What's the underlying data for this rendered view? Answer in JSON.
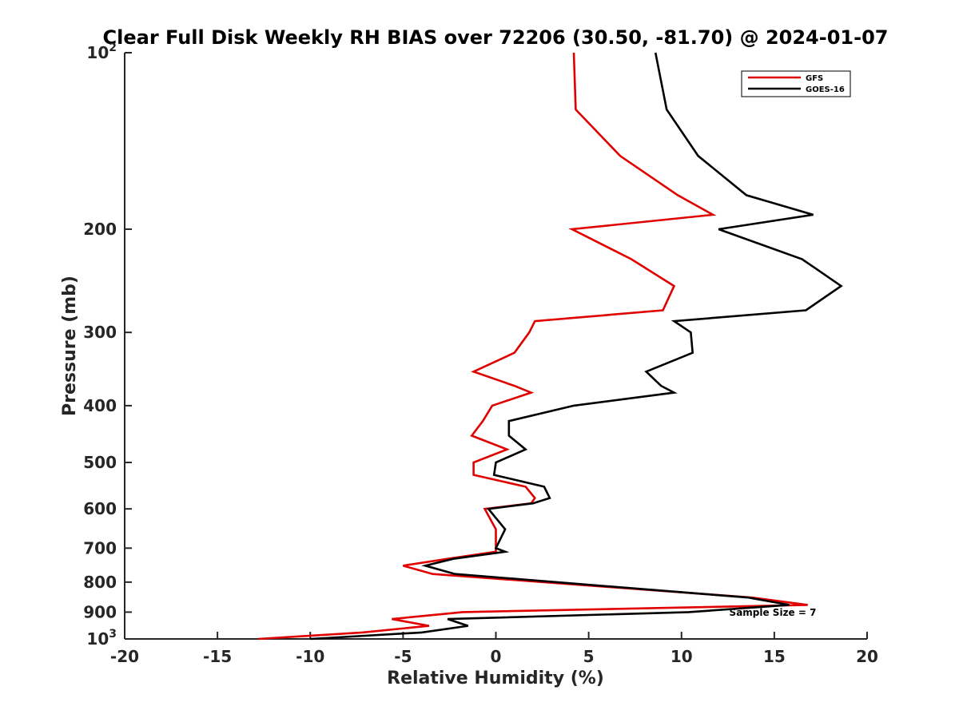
{
  "chart_data": {
    "type": "line",
    "title": "Clear Full Disk Weekly RH BIAS over 72206 (30.50, -81.70) @ 2024-01-07",
    "xlabel": "Relative Humidity (%)",
    "ylabel": "Pressure (mb)",
    "xlim": [
      -20,
      20
    ],
    "ylim": [
      100,
      1000
    ],
    "y_scale": "log",
    "y_reversed": true,
    "grid": false,
    "legend_position": "top-right",
    "x_ticks": [
      "-20",
      "-15",
      "-10",
      "-5",
      "0",
      "5",
      "10",
      "15",
      "20"
    ],
    "y_ticks": [
      {
        "value": 100,
        "base": "10",
        "exp": "2"
      },
      {
        "value": 200,
        "label": "200"
      },
      {
        "value": 300,
        "label": "300"
      },
      {
        "value": 400,
        "label": "400"
      },
      {
        "value": 500,
        "label": "500"
      },
      {
        "value": 600,
        "label": "600"
      },
      {
        "value": 700,
        "label": "700"
      },
      {
        "value": 800,
        "label": "800"
      },
      {
        "value": 900,
        "label": "900"
      },
      {
        "value": 1000,
        "base": "10",
        "exp": "3"
      }
    ],
    "annotation": "Sample Size = 7",
    "series": [
      {
        "name": "GFS",
        "color": "#e00000",
        "points": [
          [
            4.2,
            100
          ],
          [
            4.3,
            125
          ],
          [
            6.7,
            150
          ],
          [
            9.8,
            175
          ],
          [
            11.7,
            189
          ],
          [
            4.1,
            200
          ],
          [
            7.3,
            225
          ],
          [
            9.6,
            250
          ],
          [
            9.0,
            275
          ],
          [
            2.1,
            287
          ],
          [
            1.8,
            300
          ],
          [
            1.0,
            325
          ],
          [
            -1.2,
            350
          ],
          [
            1.0,
            370
          ],
          [
            1.9,
            380
          ],
          [
            -0.2,
            400
          ],
          [
            -0.7,
            425
          ],
          [
            -1.3,
            450
          ],
          [
            0.6,
            475
          ],
          [
            -1.2,
            500
          ],
          [
            -1.2,
            525
          ],
          [
            1.6,
            550
          ],
          [
            2.1,
            575
          ],
          [
            1.9,
            587
          ],
          [
            -0.6,
            600
          ],
          [
            0.0,
            650
          ],
          [
            0.0,
            700
          ],
          [
            0.0,
            710
          ],
          [
            -2.6,
            730
          ],
          [
            -5.0,
            750
          ],
          [
            -3.4,
            775
          ],
          [
            13.8,
            850
          ],
          [
            16.8,
            875
          ],
          [
            -1.8,
            900
          ],
          [
            -5.6,
            925
          ],
          [
            -3.6,
            950
          ],
          [
            -7.2,
            975
          ],
          [
            -12.8,
            1000
          ]
        ]
      },
      {
        "name": "GOES-16",
        "color": "#000000",
        "points": [
          [
            8.6,
            100
          ],
          [
            9.2,
            125
          ],
          [
            10.9,
            150
          ],
          [
            13.5,
            175
          ],
          [
            17.1,
            189
          ],
          [
            12.0,
            200
          ],
          [
            16.5,
            225
          ],
          [
            18.6,
            250
          ],
          [
            16.7,
            275
          ],
          [
            9.6,
            287
          ],
          [
            10.5,
            300
          ],
          [
            10.6,
            325
          ],
          [
            8.1,
            350
          ],
          [
            8.9,
            370
          ],
          [
            9.6,
            380
          ],
          [
            4.2,
            400
          ],
          [
            0.7,
            425
          ],
          [
            0.7,
            450
          ],
          [
            1.6,
            475
          ],
          [
            0.0,
            500
          ],
          [
            -0.1,
            525
          ],
          [
            2.6,
            550
          ],
          [
            2.9,
            575
          ],
          [
            2.0,
            587
          ],
          [
            -0.4,
            600
          ],
          [
            0.5,
            650
          ],
          [
            0.0,
            700
          ],
          [
            0.5,
            710
          ],
          [
            -2.3,
            730
          ],
          [
            -3.8,
            750
          ],
          [
            -2.2,
            775
          ],
          [
            13.6,
            850
          ],
          [
            15.8,
            875
          ],
          [
            10.4,
            900
          ],
          [
            -2.6,
            925
          ],
          [
            -1.5,
            950
          ],
          [
            -4.0,
            975
          ],
          [
            -10.0,
            1000
          ]
        ]
      }
    ]
  }
}
